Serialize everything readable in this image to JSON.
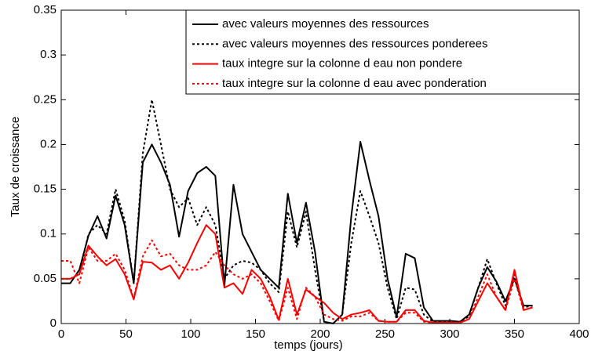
{
  "chart_data": {
    "type": "line",
    "xlabel": "temps (jours)",
    "ylabel": "Taux de croissance",
    "x": [
      0,
      7,
      14,
      21,
      28,
      35,
      42,
      49,
      56,
      63,
      70,
      77,
      84,
      91,
      98,
      105,
      112,
      119,
      126,
      133,
      140,
      147,
      154,
      161,
      168,
      175,
      182,
      189,
      196,
      203,
      210,
      217,
      224,
      231,
      238,
      245,
      252,
      259,
      266,
      273,
      280,
      287,
      294,
      301,
      308,
      315,
      322,
      329,
      336,
      343,
      350,
      357,
      364
    ],
    "series": [
      {
        "name": "avec valeurs moyennes des ressources",
        "color": "#000000",
        "line_style": "solid",
        "values": [
          0.045,
          0.045,
          0.06,
          0.098,
          0.12,
          0.095,
          0.143,
          0.11,
          0.045,
          0.18,
          0.2,
          0.18,
          0.155,
          0.097,
          0.148,
          0.168,
          0.175,
          0.165,
          0.042,
          0.155,
          0.1,
          0.08,
          0.06,
          0.05,
          0.04,
          0.145,
          0.09,
          0.135,
          0.08,
          0.002,
          0,
          0.01,
          0.12,
          0.203,
          0.16,
          0.12,
          0.05,
          0.007,
          0.078,
          0.073,
          0.018,
          0.003,
          0.003,
          0.003,
          0.002,
          0.01,
          0.04,
          0.063,
          0.047,
          0.025,
          0.05,
          0.02,
          0.02
        ]
      },
      {
        "name": "avec valeurs moyennes des ressources ponderees",
        "color": "#000000",
        "line_style": "dotted",
        "values": [
          0.05,
          0.05,
          0.055,
          0.1,
          0.11,
          0.1,
          0.15,
          0.115,
          0.045,
          0.19,
          0.25,
          0.2,
          0.15,
          0.13,
          0.14,
          0.11,
          0.13,
          0.11,
          0.05,
          0.065,
          0.07,
          0.068,
          0.06,
          0.045,
          0.035,
          0.125,
          0.085,
          0.125,
          0.06,
          0.002,
          0,
          0.01,
          0.09,
          0.148,
          0.12,
          0.09,
          0.04,
          0.005,
          0.04,
          0.038,
          0.01,
          0.002,
          0.002,
          0.002,
          0.002,
          0.008,
          0.04,
          0.072,
          0.045,
          0.02,
          0.055,
          0.018,
          0.02
        ]
      },
      {
        "name": "taux integre sur la colonne d eau non pondere",
        "color": "#ff0000",
        "line_style": "solid",
        "values": [
          0.05,
          0.05,
          0.055,
          0.087,
          0.075,
          0.065,
          0.072,
          0.055,
          0.027,
          0.069,
          0.068,
          0.06,
          0.065,
          0.05,
          0.068,
          0.09,
          0.11,
          0.1,
          0.04,
          0.045,
          0.033,
          0.06,
          0.05,
          0.03,
          0.004,
          0.05,
          0.01,
          0.038,
          0.03,
          0.023,
          0.012,
          0.005,
          0.01,
          0.012,
          0.015,
          0.003,
          0.002,
          0.002,
          0.015,
          0.015,
          0.003,
          0.001,
          0.001,
          0.001,
          0.001,
          0.005,
          0.025,
          0.045,
          0.03,
          0.015,
          0.06,
          0.015,
          0.018
        ]
      },
      {
        "name": "taux integre sur la colonne d eau avec ponderation",
        "color": "#ff0000",
        "line_style": "dotted",
        "values": [
          0.07,
          0.07,
          0.045,
          0.085,
          0.07,
          0.07,
          0.078,
          0.06,
          0.028,
          0.075,
          0.093,
          0.075,
          0.078,
          0.065,
          0.06,
          0.06,
          0.065,
          0.08,
          0.065,
          0.055,
          0.05,
          0.055,
          0.045,
          0.025,
          0.003,
          0.04,
          0.005,
          0.04,
          0.03,
          0.01,
          0.005,
          0.003,
          0.008,
          0.008,
          0.012,
          0.003,
          0.002,
          0.002,
          0.012,
          0.012,
          0.002,
          0.001,
          0.001,
          0.001,
          0.001,
          0.005,
          0.03,
          0.055,
          0.03,
          0.015,
          0.05,
          0.015,
          0.018
        ]
      }
    ],
    "xlim": [
      0,
      400
    ],
    "xticks": [
      0,
      50,
      100,
      150,
      200,
      250,
      300,
      350,
      400
    ],
    "ylim": [
      0,
      0.35
    ],
    "yticks": [
      0,
      0.05,
      0.1,
      0.15,
      0.2,
      0.25,
      0.3,
      0.35
    ],
    "grid": false,
    "legend_position": "northeast"
  }
}
